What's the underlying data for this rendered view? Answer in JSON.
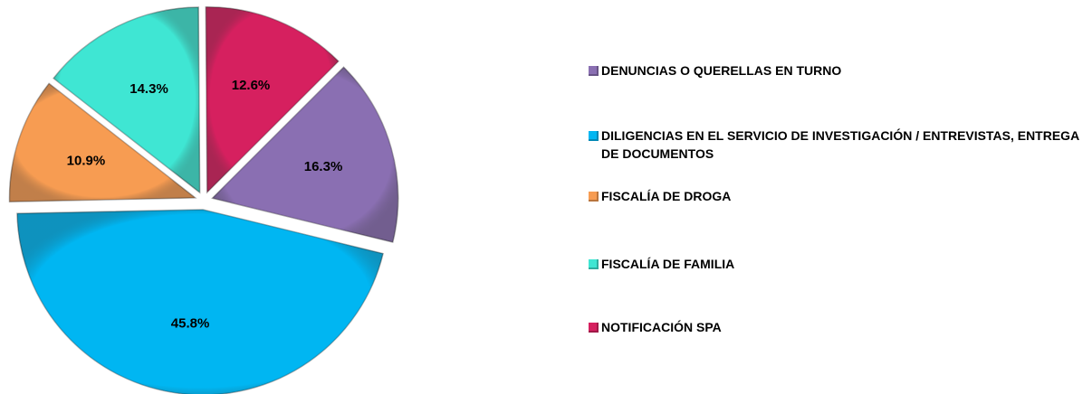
{
  "chart_data": {
    "type": "pie",
    "categories": [
      "DENUNCIAS O QUERELLAS EN TURNO",
      "DILIGENCIAS EN EL SERVICIO DE INVESTIGACIÓN / ENTREVISTAS, ENTREGA DE DOCUMENTOS",
      "FISCALÍA DE DROGA",
      "FISCALÍA DE FAMILIA",
      "NOTIFICACIÓN SPA"
    ],
    "values": [
      16.3,
      45.8,
      10.9,
      14.3,
      12.6
    ],
    "value_labels": [
      "16.3%",
      "45.8%",
      "10.9%",
      "14.3%",
      "12.6%"
    ],
    "colors": [
      "#8a6fb2",
      "#00b6f2",
      "#f79c52",
      "#3fe6d3",
      "#d6205f"
    ],
    "legend": "right"
  }
}
